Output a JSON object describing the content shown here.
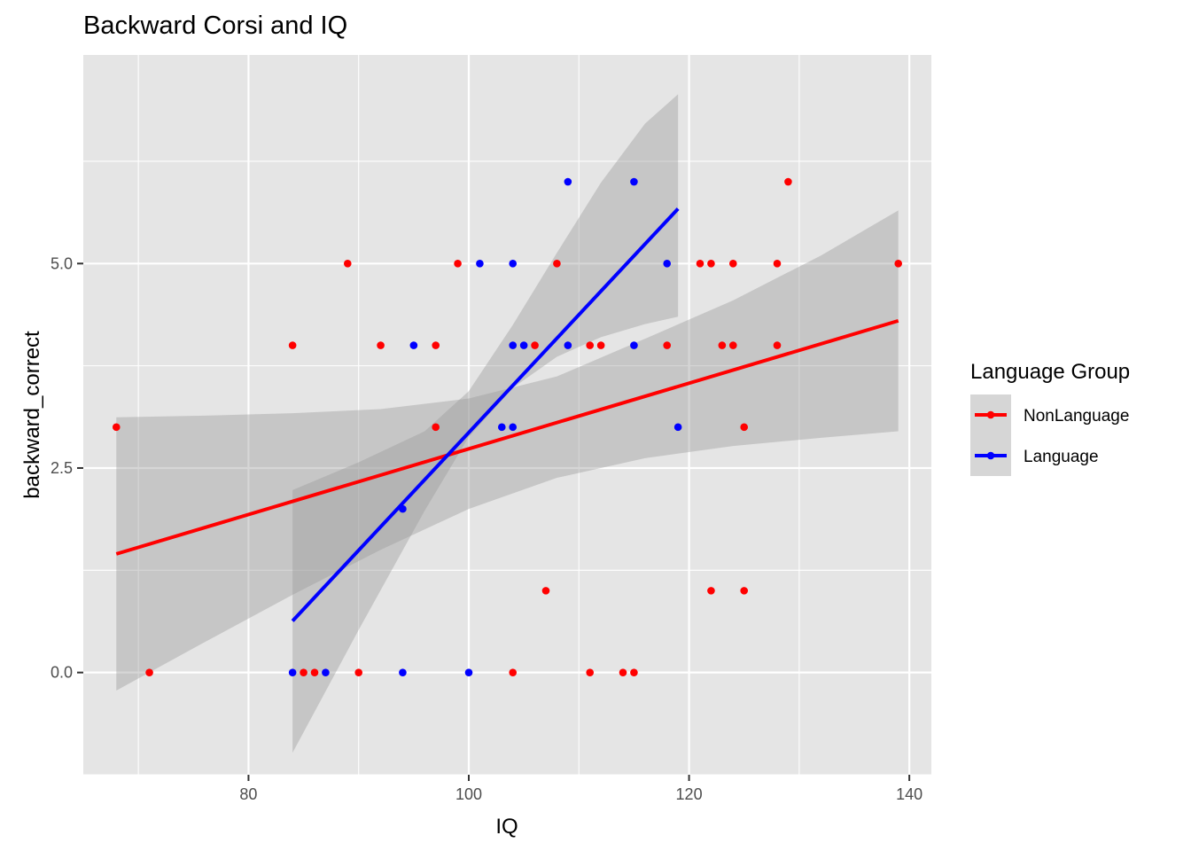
{
  "chart_data": {
    "type": "scatter",
    "title": "Backward Corsi and IQ",
    "xlabel": "IQ",
    "ylabel": "backward_correct",
    "xlim": [
      65,
      142
    ],
    "ylim": [
      -1.25,
      7.55
    ],
    "x_ticks": [
      80,
      100,
      120,
      140
    ],
    "x_tick_labels": [
      "80",
      "100",
      "120",
      "140"
    ],
    "y_ticks": [
      0,
      2.5,
      5
    ],
    "y_tick_labels": [
      "0.0",
      "2.5",
      "5.0"
    ],
    "grid": true,
    "legend": {
      "title": "Language Group",
      "position": "right",
      "entries": [
        "NonLanguage",
        "Language"
      ]
    },
    "series": [
      {
        "name": "NonLanguage",
        "color": "#ff0000",
        "points": [
          [
            68,
            3
          ],
          [
            71,
            0
          ],
          [
            84,
            4
          ],
          [
            85,
            0
          ],
          [
            86,
            0
          ],
          [
            89,
            5
          ],
          [
            90,
            0
          ],
          [
            92,
            4
          ],
          [
            97,
            4
          ],
          [
            97,
            3
          ],
          [
            99,
            5
          ],
          [
            104,
            0
          ],
          [
            106,
            4
          ],
          [
            107,
            1
          ],
          [
            108,
            5
          ],
          [
            111,
            4
          ],
          [
            111,
            0
          ],
          [
            112,
            4
          ],
          [
            114,
            0
          ],
          [
            115,
            0
          ],
          [
            118,
            4
          ],
          [
            121,
            5
          ],
          [
            122,
            5
          ],
          [
            122,
            1
          ],
          [
            123,
            4
          ],
          [
            124,
            5
          ],
          [
            124,
            4
          ],
          [
            125,
            3
          ],
          [
            125,
            1
          ],
          [
            128,
            5
          ],
          [
            128,
            4
          ],
          [
            129,
            6
          ],
          [
            139,
            5
          ]
        ],
        "trend": {
          "x": [
            68,
            139
          ],
          "y": [
            1.45,
            4.3
          ],
          "ci_x": [
            68,
            76,
            84,
            92,
            100,
            108,
            116,
            124,
            132,
            139
          ],
          "ci_lower": [
            -0.22,
            0.37,
            0.95,
            1.5,
            2.0,
            2.38,
            2.62,
            2.77,
            2.87,
            2.95
          ],
          "ci_upper": [
            3.12,
            3.14,
            3.17,
            3.22,
            3.35,
            3.62,
            4.08,
            4.55,
            5.1,
            5.65
          ]
        }
      },
      {
        "name": "Language",
        "color": "#0000ff",
        "points": [
          [
            84,
            0
          ],
          [
            87,
            0
          ],
          [
            94,
            2
          ],
          [
            94,
            0
          ],
          [
            95,
            4
          ],
          [
            100,
            0
          ],
          [
            101,
            5
          ],
          [
            103,
            3
          ],
          [
            104,
            5
          ],
          [
            104,
            4
          ],
          [
            104,
            3
          ],
          [
            105,
            4
          ],
          [
            109,
            6
          ],
          [
            109,
            4
          ],
          [
            115,
            6
          ],
          [
            115,
            4
          ],
          [
            118,
            5
          ],
          [
            119,
            3
          ]
        ],
        "trend": {
          "x": [
            84,
            119
          ],
          "y": [
            0.63,
            5.67
          ],
          "ci_x": [
            84,
            90,
            96,
            100,
            104,
            108,
            112,
            116,
            119
          ],
          "ci_lower": [
            -0.98,
            0.52,
            1.98,
            2.88,
            3.48,
            3.86,
            4.1,
            4.26,
            4.35
          ],
          "ci_upper": [
            2.23,
            2.57,
            2.95,
            3.44,
            4.25,
            5.13,
            5.99,
            6.71,
            7.07
          ]
        }
      }
    ],
    "colors": {
      "panel_background": "#e5e5e5",
      "grid_line": "#ffffff",
      "ci_fill": "#999999"
    }
  }
}
